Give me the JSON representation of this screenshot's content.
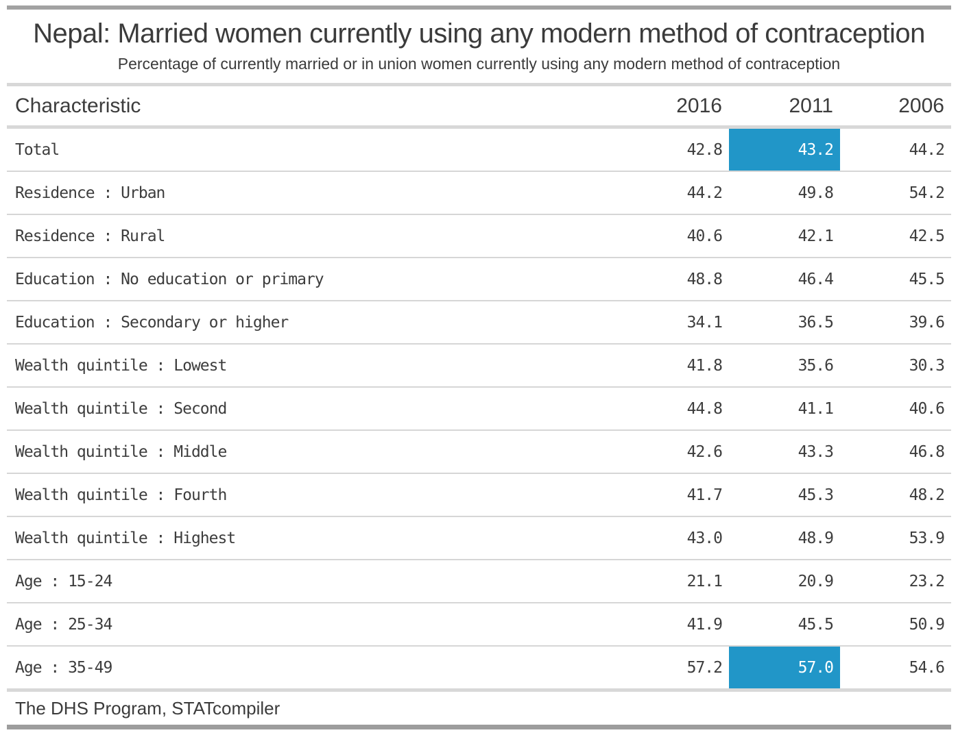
{
  "header": {
    "title": "Nepal: Married women currently using any modern method of contraception",
    "subtitle": "Percentage of currently married or in union women currently using any modern method of contraception"
  },
  "table": {
    "characteristic_label": "Characteristic",
    "years": [
      "2016",
      "2011",
      "2006"
    ],
    "rows": [
      {
        "label": "Total",
        "values": [
          "42.8",
          "43.2",
          "44.2"
        ],
        "highlight": 1
      },
      {
        "label": "Residence : Urban",
        "values": [
          "44.2",
          "49.8",
          "54.2"
        ],
        "highlight": null
      },
      {
        "label": "Residence : Rural",
        "values": [
          "40.6",
          "42.1",
          "42.5"
        ],
        "highlight": null
      },
      {
        "label": "Education : No education or primary",
        "values": [
          "48.8",
          "46.4",
          "45.5"
        ],
        "highlight": null
      },
      {
        "label": "Education : Secondary or higher",
        "values": [
          "34.1",
          "36.5",
          "39.6"
        ],
        "highlight": null
      },
      {
        "label": "Wealth quintile : Lowest",
        "values": [
          "41.8",
          "35.6",
          "30.3"
        ],
        "highlight": null
      },
      {
        "label": "Wealth quintile : Second",
        "values": [
          "44.8",
          "41.1",
          "40.6"
        ],
        "highlight": null
      },
      {
        "label": "Wealth quintile : Middle",
        "values": [
          "42.6",
          "43.3",
          "46.8"
        ],
        "highlight": null
      },
      {
        "label": "Wealth quintile : Fourth",
        "values": [
          "41.7",
          "45.3",
          "48.2"
        ],
        "highlight": null
      },
      {
        "label": "Wealth quintile : Highest",
        "values": [
          "43.0",
          "48.9",
          "53.9"
        ],
        "highlight": null
      },
      {
        "label": "Age : 15-24",
        "values": [
          "21.1",
          "20.9",
          "23.2"
        ],
        "highlight": null
      },
      {
        "label": "Age : 25-34",
        "values": [
          "41.9",
          "45.5",
          "50.9"
        ],
        "highlight": null
      },
      {
        "label": "Age : 35-49",
        "values": [
          "57.2",
          "57.0",
          "54.6"
        ],
        "highlight": 1
      }
    ]
  },
  "footer": {
    "source": "The DHS Program, STATcompiler"
  },
  "colors": {
    "highlight_cell": "#2196c8",
    "highlight_text": "#ffffff",
    "bar_dark": "#a2a2a2",
    "bar_light": "#d8d8d8",
    "row_separator": "#d6d6d6",
    "text": "#3c3c3c"
  },
  "chart_data": {
    "type": "table",
    "title": "Nepal: Married women currently using any modern method of contraception",
    "subtitle": "Percentage of currently married or in union women currently using any modern method of contraception",
    "columns": [
      "Characteristic",
      "2016",
      "2011",
      "2006"
    ],
    "rows": [
      [
        "Total",
        42.8,
        43.2,
        44.2
      ],
      [
        "Residence : Urban",
        44.2,
        49.8,
        54.2
      ],
      [
        "Residence : Rural",
        40.6,
        42.1,
        42.5
      ],
      [
        "Education : No education or primary",
        48.8,
        46.4,
        45.5
      ],
      [
        "Education : Secondary or higher",
        34.1,
        36.5,
        39.6
      ],
      [
        "Wealth quintile : Lowest",
        41.8,
        35.6,
        30.3
      ],
      [
        "Wealth quintile : Second",
        44.8,
        41.1,
        40.6
      ],
      [
        "Wealth quintile : Middle",
        42.6,
        43.3,
        46.8
      ],
      [
        "Wealth quintile : Fourth",
        41.7,
        45.3,
        48.2
      ],
      [
        "Wealth quintile : Highest",
        43.0,
        48.9,
        53.9
      ],
      [
        "Age : 15-24",
        21.1,
        20.9,
        23.2
      ],
      [
        "Age : 25-34",
        41.9,
        45.5,
        50.9
      ],
      [
        "Age : 35-49",
        57.2,
        57.0,
        54.6
      ]
    ],
    "highlighted_cells": [
      {
        "row": "Total",
        "column": "2011",
        "value": 43.2
      },
      {
        "row": "Age : 35-49",
        "column": "2011",
        "value": 57.0
      }
    ],
    "source": "The DHS Program, STATcompiler"
  }
}
